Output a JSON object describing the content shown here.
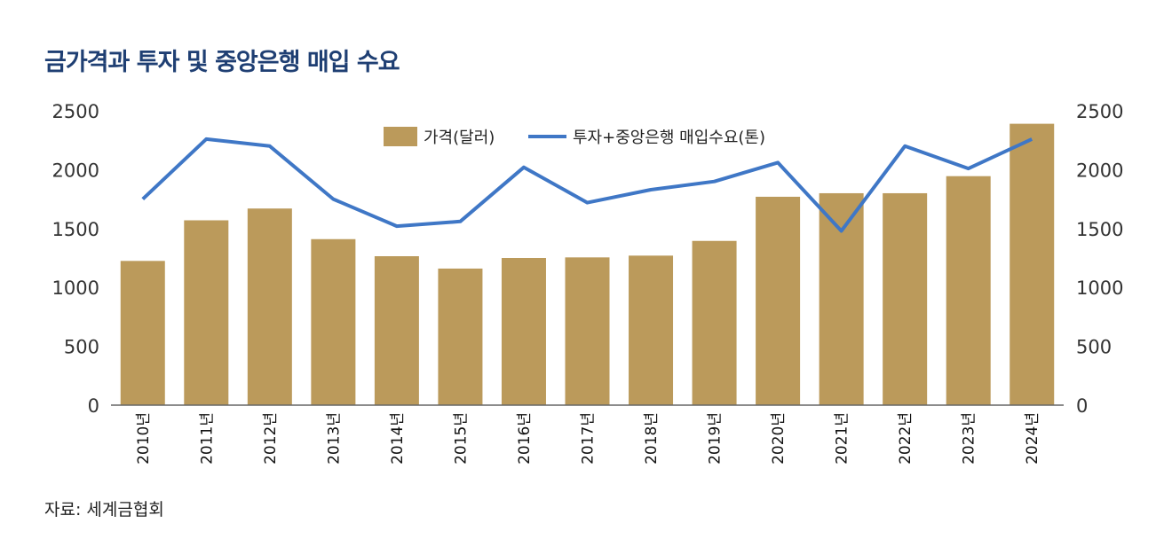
{
  "title": "금가격과 투자 및 중앙은행 매입 수요",
  "source": "자료: 세계금협회",
  "colors": {
    "bar": "#bb9a5b",
    "line": "#3f77c6",
    "title": "#1f3f73"
  },
  "chart_data": {
    "type": "bar",
    "title": "금가격과 투자 및 중앙은행 매입 수요",
    "categories": [
      "2010년",
      "2011년",
      "2012년",
      "2013년",
      "2014년",
      "2015년",
      "2016년",
      "2017년",
      "2018년",
      "2019년",
      "2020년",
      "2021년",
      "2022년",
      "2023년",
      "2024년"
    ],
    "series": [
      {
        "name": "가격(달러)",
        "type": "bar",
        "axis": "left",
        "values": [
          1225,
          1570,
          1670,
          1410,
          1265,
          1160,
          1250,
          1255,
          1270,
          1395,
          1770,
          1800,
          1800,
          1945,
          2390
        ]
      },
      {
        "name": "투자+중앙은행 매입수요(톤)",
        "type": "line",
        "axis": "right",
        "values": [
          1750,
          2260,
          2200,
          1750,
          1520,
          1560,
          2020,
          1720,
          1830,
          1900,
          2060,
          1480,
          2200,
          2010,
          2260
        ]
      }
    ],
    "ylim": [
      0,
      2500
    ],
    "y2lim": [
      0,
      2500
    ],
    "yticks": [
      "0",
      "500",
      "1000",
      "1500",
      "2000",
      "2500"
    ],
    "y2ticks": [
      "0",
      "500",
      "1000",
      "1500",
      "2000",
      "2500"
    ],
    "grid": false,
    "legend": "top-center"
  }
}
